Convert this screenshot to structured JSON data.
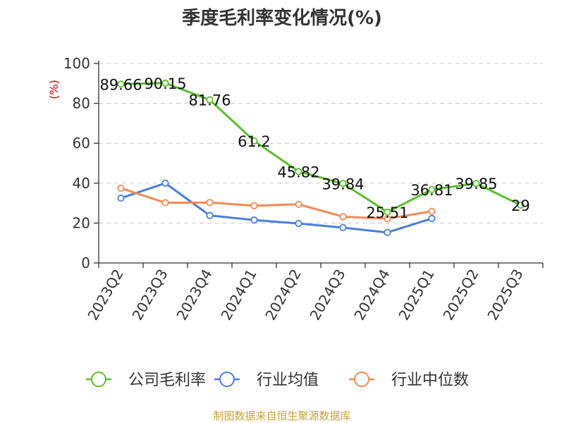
{
  "chart_data": {
    "type": "line",
    "title": "季度毛利率变化情况(%)",
    "ylabel": "(%)",
    "xlabel": "",
    "ylim": [
      0,
      100
    ],
    "yticks": [
      0,
      20,
      40,
      60,
      80,
      100
    ],
    "categories": [
      "2023Q2",
      "2023Q3",
      "2023Q4",
      "2024Q1",
      "2024Q2",
      "2024Q3",
      "2024Q4",
      "2025Q1",
      "2025Q2",
      "2025Q3"
    ],
    "series": [
      {
        "name": "公司毛利率",
        "color": "#5cbf2a",
        "values": [
          89.66,
          90.15,
          81.76,
          61.2,
          45.82,
          39.84,
          25.51,
          36.81,
          39.85,
          29
        ],
        "labels": [
          "89.66",
          "90.15",
          "81.76",
          "61.2",
          "45.82",
          "39.84",
          "25.51",
          "36.81",
          "39.85",
          "29"
        ]
      },
      {
        "name": "行业均值",
        "color": "#4a7fdc",
        "values": [
          32.5,
          40,
          23.8,
          21.5,
          19.8,
          17.7,
          15.3,
          22.3,
          null,
          null
        ]
      },
      {
        "name": "行业中位数",
        "color": "#f58a55",
        "values": [
          37.5,
          30.2,
          30.3,
          28.7,
          29.4,
          23.2,
          22.2,
          25.9,
          null,
          null
        ]
      }
    ],
    "grid": true,
    "legend_position": "bottom",
    "source": "制图数据来自恒生聚源数据库"
  }
}
